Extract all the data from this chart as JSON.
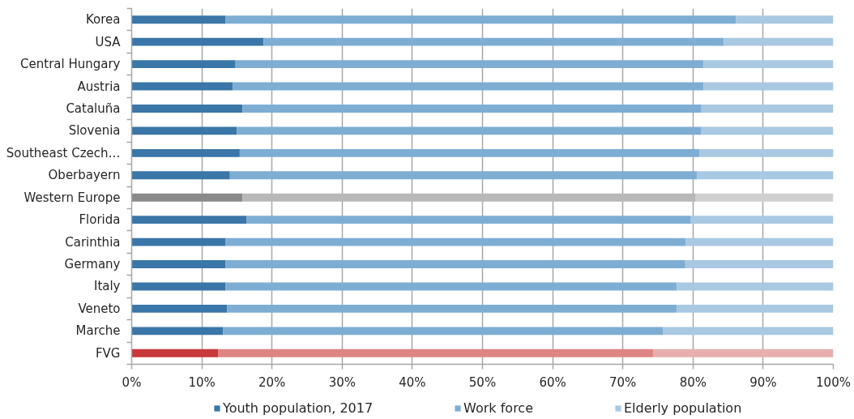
{
  "chart_data": {
    "type": "bar",
    "orientation": "horizontal",
    "stacked": true,
    "categories": [
      "Korea",
      "USA",
      "Central Hungary",
      "Austria",
      "Cataluña",
      "Slovenia",
      "Southeast Czech…",
      "Oberbayern",
      "Western Europe",
      "Florida",
      "Carinthia",
      "Germany",
      "Italy",
      "Veneto",
      "Marche",
      "FVG"
    ],
    "series": [
      {
        "name": "Youth population, 2017",
        "color": "#3a76a8",
        "values": [
          13.4,
          18.8,
          14.8,
          14.4,
          15.8,
          15.0,
          15.4,
          14.0,
          15.8,
          16.4,
          13.4,
          13.4,
          13.4,
          13.6,
          13.0,
          12.3
        ],
        "colors": [
          "#3a76a8",
          "#3a76a8",
          "#3a76a8",
          "#3a76a8",
          "#3a76a8",
          "#3a76a8",
          "#3a76a8",
          "#3a76a8",
          "#8a8a8a",
          "#3a76a8",
          "#3a76a8",
          "#3a76a8",
          "#3a76a8",
          "#3a76a8",
          "#3a76a8",
          "#c9383b"
        ]
      },
      {
        "name": "Work force",
        "color": "#7eadd4",
        "values": [
          72.7,
          65.6,
          66.7,
          67.1,
          65.4,
          66.2,
          65.5,
          66.6,
          64.6,
          63.3,
          65.6,
          65.5,
          64.3,
          64.1,
          62.7,
          62.0
        ],
        "colors": [
          "#7eadd4",
          "#7eadd4",
          "#7eadd4",
          "#7eadd4",
          "#7eadd4",
          "#7eadd4",
          "#7eadd4",
          "#7eadd4",
          "#b8b8b8",
          "#7eadd4",
          "#7eadd4",
          "#7eadd4",
          "#7eadd4",
          "#7eadd4",
          "#7eadd4",
          "#de8584"
        ]
      },
      {
        "name": "Elderly population",
        "color": "#a9c8e2",
        "values": [
          13.9,
          15.6,
          18.5,
          18.5,
          18.8,
          18.8,
          19.1,
          19.4,
          19.6,
          20.3,
          21.0,
          21.1,
          22.3,
          22.3,
          24.3,
          25.7
        ],
        "colors": [
          "#a9c8e2",
          "#a9c8e2",
          "#a9c8e2",
          "#a9c8e2",
          "#a9c8e2",
          "#a9c8e2",
          "#a9c8e2",
          "#a9c8e2",
          "#d0d0d0",
          "#a9c8e2",
          "#a9c8e2",
          "#a9c8e2",
          "#a9c8e2",
          "#a9c8e2",
          "#a9c8e2",
          "#e8aeae"
        ]
      }
    ],
    "xlim": [
      0,
      100
    ],
    "xticks": [
      {
        "value": 0,
        "label": "0%"
      },
      {
        "value": 10,
        "label": "10%"
      },
      {
        "value": 20,
        "label": "20%"
      },
      {
        "value": 30,
        "label": "30%"
      },
      {
        "value": 40,
        "label": "40%"
      },
      {
        "value": 50,
        "label": "50%"
      },
      {
        "value": 60,
        "label": "60%"
      },
      {
        "value": 70,
        "label": "70%"
      },
      {
        "value": 80,
        "label": "80%"
      },
      {
        "value": 90,
        "label": "90%"
      },
      {
        "value": 100,
        "label": "100%"
      }
    ],
    "grid": "x",
    "legend": "bottom"
  }
}
